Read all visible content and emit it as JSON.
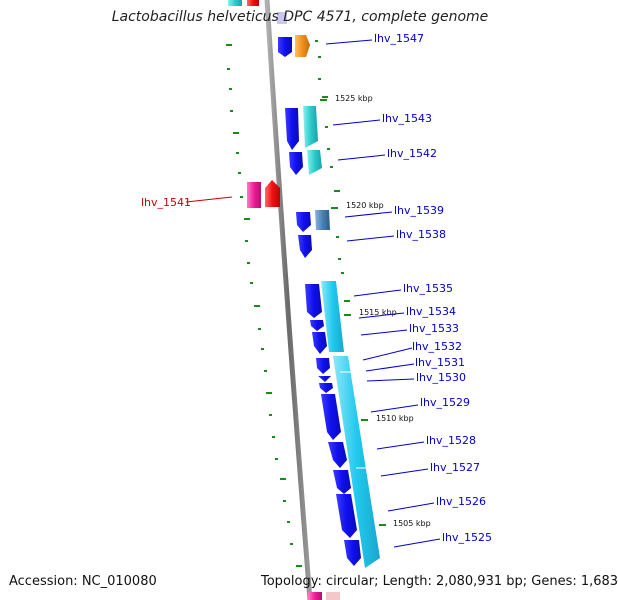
{
  "title": "Lactobacillus helveticus DPC 4571, complete genome",
  "accession": "Accession: NC_010080",
  "summary": "Topology: circular; Length: 2,080,931 bp; Genes: 1,683",
  "colors": {
    "backbone": "#808080",
    "gene_cds": "#1a1aee",
    "gene_cyan": "#22c9e6",
    "gene_teal": "#2cc8c8",
    "gene_orange": "#f0901a",
    "gene_steel": "#4a82b4",
    "gene_magenta": "#ee1c96",
    "gene_red": "#ee1111",
    "tick": "#1a8a1a",
    "label_blue": "#0000cc",
    "label_red": "#cc0000"
  },
  "ticks": [
    "1525 kbp",
    "1520 kbp",
    "1515 kbp",
    "1510 kbp",
    "1505 kbp"
  ],
  "genes": [
    {
      "name": "lhv_1547",
      "color": "label_blue"
    },
    {
      "name": "lhv_1543",
      "color": "label_blue"
    },
    {
      "name": "lhv_1542",
      "color": "label_blue"
    },
    {
      "name": "lhv_1541",
      "color": "label_red"
    },
    {
      "name": "lhv_1539",
      "color": "label_blue"
    },
    {
      "name": "lhv_1538",
      "color": "label_blue"
    },
    {
      "name": "lhv_1535",
      "color": "label_blue"
    },
    {
      "name": "lhv_1534",
      "color": "label_blue"
    },
    {
      "name": "lhv_1533",
      "color": "label_blue"
    },
    {
      "name": "lhv_1532",
      "color": "label_blue"
    },
    {
      "name": "lhv_1531",
      "color": "label_blue"
    },
    {
      "name": "lhv_1530",
      "color": "label_blue"
    },
    {
      "name": "lhv_1529",
      "color": "label_blue"
    },
    {
      "name": "lhv_1528",
      "color": "label_blue"
    },
    {
      "name": "lhv_1527",
      "color": "label_blue"
    },
    {
      "name": "lhv_1526",
      "color": "label_blue"
    },
    {
      "name": "lhv_1525",
      "color": "label_blue"
    }
  ]
}
